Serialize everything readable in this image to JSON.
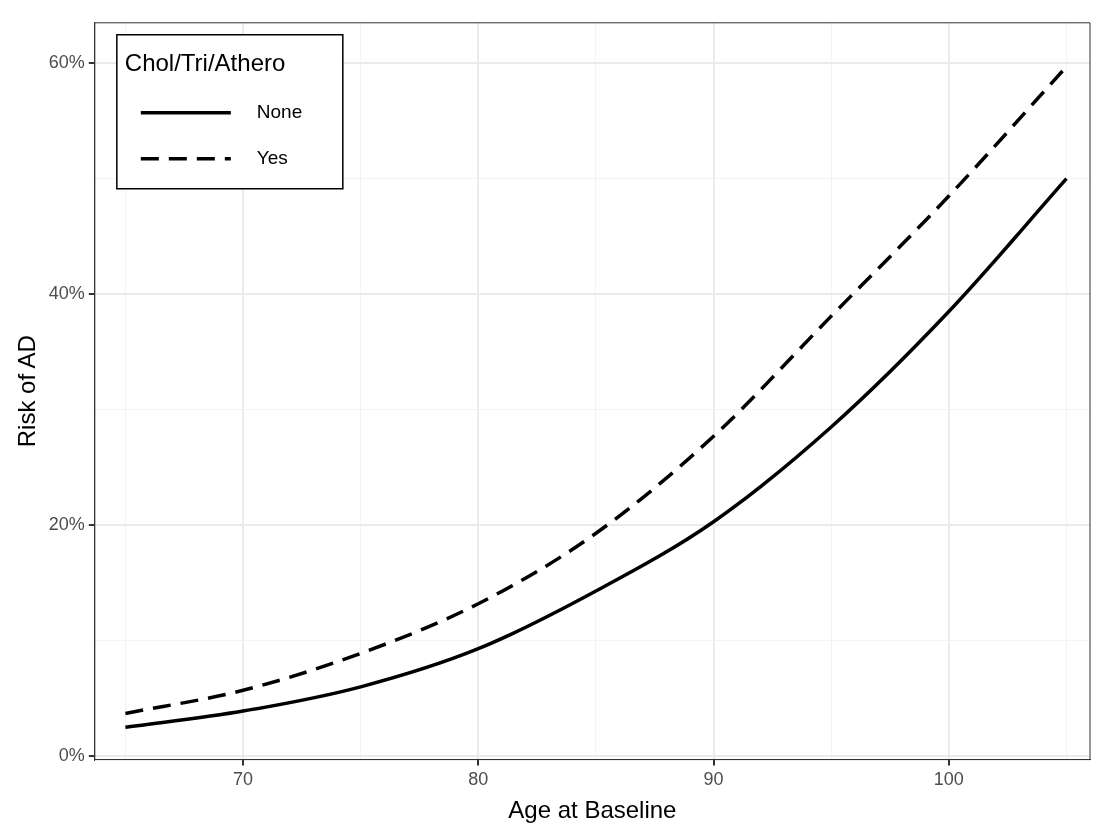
{
  "chart_data": {
    "type": "line",
    "xlabel": "Age at Baseline",
    "ylabel": "Risk of AD",
    "legend_title": "Chol/Tri/Athero",
    "legend": "top left",
    "grid": true,
    "x": [
      65,
      70,
      75,
      80,
      85,
      90,
      95,
      100,
      105
    ],
    "series": [
      {
        "name": "None",
        "color": "#000000",
        "line_style": "solid",
        "values": [
          2.5,
          3.9,
          6.0,
          9.3,
          14.3,
          20.3,
          28.5,
          38.5,
          50.0
        ]
      },
      {
        "name": "Yes",
        "color": "#000000",
        "line_style": "dashed",
        "values": [
          3.7,
          5.7,
          8.9,
          13.2,
          19.3,
          27.7,
          38.1,
          48.5,
          59.7
        ]
      }
    ],
    "xlim": [
      63.7,
      106
    ],
    "xticks": [
      {
        "value": 65,
        "label": null
      },
      70,
      {
        "value": 75,
        "label": null
      },
      80,
      {
        "value": 85,
        "label": null
      },
      90,
      {
        "value": 95,
        "label": null
      },
      100,
      {
        "value": 105,
        "label": null
      }
    ],
    "ylim": [
      -0.3,
      63.5
    ],
    "yticks": [
      {
        "value": 0,
        "label": "0%"
      },
      {
        "value": 10,
        "label": null
      },
      {
        "value": 20,
        "label": "20%"
      },
      {
        "value": 30,
        "label": null
      },
      {
        "value": 40,
        "label": "40%"
      },
      {
        "value": 50,
        "label": null
      },
      {
        "value": 60,
        "label": "60%"
      }
    ]
  }
}
